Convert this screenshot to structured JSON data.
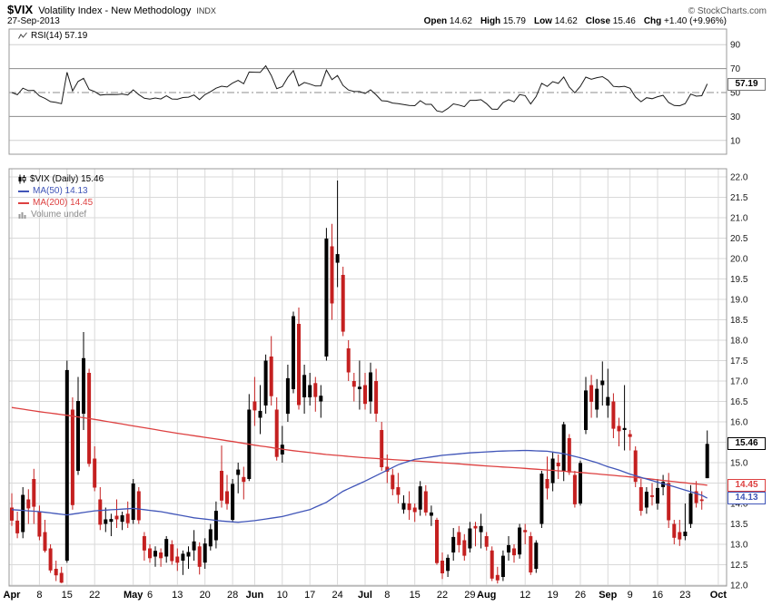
{
  "header": {
    "symbol": "$VIX",
    "title": "Volatility Index - New Methodology",
    "exchange": "INDX",
    "copyright": "© StockCharts.com",
    "date": "27-Sep-2013",
    "quote_items": [
      {
        "label": "Open",
        "value": "14.62"
      },
      {
        "label": "High",
        "value": "15.79"
      },
      {
        "label": "Low",
        "value": "14.62"
      },
      {
        "label": "Close",
        "value": "15.46"
      },
      {
        "label": "Chg",
        "value": "+1.40 (+9.96%)"
      }
    ]
  },
  "rsi_panel": {
    "label": "RSI(14) 57.19",
    "last_label": "57.19",
    "ticks": [
      90,
      70,
      50,
      30,
      10
    ]
  },
  "main_panel": {
    "legend": {
      "series": "$VIX (Daily) 15.46",
      "ma50": "MA(50) 14.13",
      "ma200": "MA(200) 14.45",
      "volume": "Volume undef"
    },
    "last_close_label": "15.46",
    "ma50_label": "14.13",
    "ma200_label": "14.45"
  },
  "colors": {
    "candle_up": "#000000",
    "candle_down": "#c42020",
    "ma50": "#4055b8",
    "ma200": "#dd4040",
    "rsi_line": "#1a1a1a",
    "grid": "#d9d9d9",
    "panel_border": "#999999",
    "axis_text": "#1a1a1a",
    "volume_legend": "#8a8a8a"
  },
  "chart_data": {
    "type": "candlestick",
    "symbol": "$VIX",
    "timeframe": "Daily",
    "ylim": [
      12.0,
      22.0
    ],
    "y_ticks": [
      22.0,
      21.5,
      21.0,
      20.5,
      20.0,
      19.5,
      19.0,
      18.5,
      18.0,
      17.5,
      17.0,
      16.5,
      16.0,
      15.5,
      15.0,
      14.5,
      14.0,
      13.5,
      13.0,
      12.5,
      12.0
    ],
    "slots": 130,
    "last_close": 15.46,
    "x_labels": [
      [
        "Apr",
        0,
        true
      ],
      [
        "8",
        5,
        false
      ],
      [
        "15",
        10,
        false
      ],
      [
        "22",
        15,
        false
      ],
      [
        "May",
        22,
        true
      ],
      [
        "6",
        25,
        false
      ],
      [
        "13",
        30,
        false
      ],
      [
        "20",
        35,
        false
      ],
      [
        "28",
        40,
        false
      ],
      [
        "Jun",
        44,
        true
      ],
      [
        "10",
        49,
        false
      ],
      [
        "17",
        54,
        false
      ],
      [
        "24",
        59,
        false
      ],
      [
        "Jul",
        64,
        true
      ],
      [
        "8",
        68,
        false
      ],
      [
        "15",
        73,
        false
      ],
      [
        "22",
        78,
        false
      ],
      [
        "29",
        83,
        false
      ],
      [
        "Aug",
        86,
        true
      ],
      [
        "12",
        93,
        false
      ],
      [
        "19",
        98,
        false
      ],
      [
        "26",
        103,
        false
      ],
      [
        "Sep",
        108,
        true
      ],
      [
        "9",
        112,
        false
      ],
      [
        "16",
        117,
        false
      ],
      [
        "23",
        122,
        false
      ],
      [
        "Oct",
        128,
        true
      ]
    ],
    "candles": [
      [
        "Apr-01",
        13.9,
        14.25,
        13.45,
        13.58
      ],
      [
        "Apr-02",
        13.58,
        13.8,
        13.15,
        13.27
      ],
      [
        "Apr-03",
        13.3,
        14.4,
        13.15,
        14.21
      ],
      [
        "Apr-04",
        14.1,
        14.35,
        13.5,
        13.88
      ],
      [
        "Apr-05",
        14.6,
        14.85,
        13.5,
        13.92
      ],
      [
        "Apr-08",
        13.8,
        13.95,
        13.1,
        13.19
      ],
      [
        "Apr-09",
        13.3,
        13.6,
        12.8,
        12.84
      ],
      [
        "Apr-10",
        12.9,
        13.0,
        12.3,
        12.36
      ],
      [
        "Apr-11",
        12.4,
        12.6,
        12.1,
        12.24
      ],
      [
        "Apr-12",
        12.3,
        12.45,
        12.05,
        12.06
      ],
      [
        "Apr-15",
        12.6,
        17.5,
        12.55,
        17.27
      ],
      [
        "Apr-16",
        16.3,
        16.6,
        13.85,
        13.96
      ],
      [
        "Apr-17",
        14.8,
        17.1,
        14.7,
        16.51
      ],
      [
        "Apr-18",
        16.2,
        18.2,
        15.8,
        17.56
      ],
      [
        "Apr-19",
        17.2,
        17.3,
        14.9,
        14.97
      ],
      [
        "Apr-22",
        15.1,
        15.4,
        14.3,
        14.39
      ],
      [
        "Apr-23",
        14.1,
        14.4,
        13.35,
        13.48
      ],
      [
        "Apr-24",
        13.5,
        13.9,
        13.3,
        13.61
      ],
      [
        "Apr-25",
        13.55,
        13.75,
        13.2,
        13.62
      ],
      [
        "Apr-26",
        13.7,
        14.1,
        13.4,
        13.61
      ],
      [
        "Apr-29",
        13.55,
        13.8,
        13.35,
        13.71
      ],
      [
        "Apr-30",
        13.75,
        14.05,
        13.4,
        13.52
      ],
      [
        "May-01",
        13.6,
        14.6,
        13.5,
        14.49
      ],
      [
        "May-02",
        14.3,
        14.4,
        13.5,
        13.59
      ],
      [
        "May-03",
        13.2,
        13.3,
        12.6,
        12.85
      ],
      [
        "May-06",
        12.9,
        13.0,
        12.55,
        12.66
      ],
      [
        "May-07",
        12.7,
        12.95,
        12.45,
        12.84
      ],
      [
        "May-08",
        12.8,
        12.9,
        12.45,
        12.66
      ],
      [
        "May-09",
        12.7,
        13.2,
        12.55,
        13.13
      ],
      [
        "May-10",
        13.0,
        13.1,
        12.5,
        12.59
      ],
      [
        "May-13",
        12.7,
        12.9,
        12.35,
        12.55
      ],
      [
        "May-14",
        12.6,
        12.85,
        12.25,
        12.77
      ],
      [
        "May-15",
        12.7,
        12.95,
        12.4,
        12.81
      ],
      [
        "May-16",
        12.85,
        13.35,
        12.6,
        13.07
      ],
      [
        "May-17",
        12.95,
        13.05,
        12.26,
        12.45
      ],
      [
        "May-20",
        12.55,
        13.15,
        12.4,
        13.02
      ],
      [
        "May-21",
        12.95,
        13.5,
        12.85,
        13.37
      ],
      [
        "May-22",
        13.1,
        14.05,
        12.9,
        13.82
      ],
      [
        "May-23",
        14.8,
        15.42,
        13.9,
        14.07
      ],
      [
        "May-24",
        14.3,
        14.7,
        13.85,
        13.99
      ],
      [
        "May-28",
        13.6,
        14.6,
        13.55,
        14.48
      ],
      [
        "May-29",
        14.7,
        15.0,
        14.25,
        14.83
      ],
      [
        "May-30",
        14.65,
        14.9,
        14.1,
        14.53
      ],
      [
        "May-31",
        14.6,
        16.68,
        14.55,
        16.3
      ],
      [
        "Jun-03",
        16.5,
        17.1,
        15.9,
        16.28
      ],
      [
        "Jun-04",
        16.1,
        16.9,
        15.7,
        16.27
      ],
      [
        "Jun-05",
        16.4,
        17.65,
        16.2,
        17.5
      ],
      [
        "Jun-06",
        17.6,
        18.1,
        16.4,
        16.63
      ],
      [
        "Jun-07",
        16.3,
        16.6,
        15.05,
        15.14
      ],
      [
        "Jun-10",
        15.2,
        15.9,
        15.0,
        15.44
      ],
      [
        "Jun-11",
        16.2,
        17.4,
        16.0,
        17.07
      ],
      [
        "Jun-12",
        16.8,
        18.7,
        16.7,
        18.59
      ],
      [
        "Jun-13",
        18.4,
        18.8,
        16.3,
        16.41
      ],
      [
        "Jun-14",
        16.6,
        17.4,
        16.2,
        17.15
      ],
      [
        "Jun-17",
        16.6,
        17.2,
        16.4,
        16.9
      ],
      [
        "Jun-18",
        16.95,
        17.1,
        16.25,
        16.61
      ],
      [
        "Jun-19",
        16.5,
        16.9,
        16.1,
        16.64
      ],
      [
        "Jun-20",
        17.6,
        20.75,
        17.5,
        20.49
      ],
      [
        "Jun-21",
        20.3,
        20.85,
        18.5,
        18.9
      ],
      [
        "Jun-24",
        19.9,
        21.91,
        19.3,
        20.11
      ],
      [
        "Jun-25",
        19.6,
        19.8,
        18.1,
        18.21
      ],
      [
        "Jun-26",
        17.8,
        18.0,
        17.0,
        17.21
      ],
      [
        "Jun-27",
        17.0,
        17.2,
        16.5,
        16.86
      ],
      [
        "Jun-28",
        16.8,
        17.5,
        16.3,
        16.86
      ],
      [
        "Jul-01",
        16.9,
        17.2,
        16.3,
        16.44
      ],
      [
        "Jul-02",
        16.5,
        17.45,
        16.2,
        17.21
      ],
      [
        "Jul-03",
        17.0,
        17.3,
        16.0,
        16.2
      ],
      [
        "Jul-05",
        15.8,
        16.0,
        14.8,
        14.89
      ],
      [
        "Jul-08",
        14.9,
        15.2,
        14.5,
        14.78
      ],
      [
        "Jul-09",
        14.7,
        14.85,
        14.2,
        14.35
      ],
      [
        "Jul-10",
        14.4,
        14.75,
        14.0,
        14.21
      ],
      [
        "Jul-11",
        13.85,
        14.2,
        13.75,
        14.01
      ],
      [
        "Jul-12",
        14.0,
        14.3,
        13.6,
        13.84
      ],
      [
        "Jul-15",
        13.9,
        14.0,
        13.55,
        13.79
      ],
      [
        "Jul-16",
        13.85,
        14.55,
        13.7,
        14.42
      ],
      [
        "Jul-17",
        14.3,
        14.45,
        13.7,
        13.78
      ],
      [
        "Jul-18",
        13.7,
        13.95,
        13.45,
        13.78
      ],
      [
        "Jul-19",
        13.6,
        13.65,
        12.5,
        12.54
      ],
      [
        "Jul-22",
        12.6,
        12.8,
        12.15,
        12.29
      ],
      [
        "Jul-23",
        12.35,
        12.75,
        12.2,
        12.67
      ],
      [
        "Jul-24",
        12.8,
        13.4,
        12.6,
        13.18
      ],
      [
        "Jul-25",
        13.3,
        13.45,
        12.8,
        12.98
      ],
      [
        "Jul-26",
        13.1,
        13.25,
        12.6,
        12.72
      ],
      [
        "Jul-29",
        12.9,
        13.55,
        12.8,
        13.39
      ],
      [
        "Jul-30",
        13.45,
        13.55,
        12.95,
        13.39
      ],
      [
        "Jul-31",
        13.3,
        13.75,
        12.9,
        13.45
      ],
      [
        "Aug-01",
        13.2,
        13.3,
        12.85,
        12.94
      ],
      [
        "Aug-02",
        12.85,
        12.95,
        12.1,
        12.16
      ],
      [
        "Aug-05",
        12.25,
        12.45,
        12.04,
        12.12
      ],
      [
        "Aug-06",
        12.2,
        12.85,
        12.1,
        12.72
      ],
      [
        "Aug-07",
        12.8,
        13.2,
        12.6,
        12.98
      ],
      [
        "Aug-08",
        12.9,
        13.0,
        12.55,
        12.73
      ],
      [
        "Aug-09",
        12.75,
        13.5,
        12.65,
        13.41
      ],
      [
        "Aug-12",
        13.35,
        13.5,
        13.0,
        13.3
      ],
      [
        "Aug-13",
        13.2,
        13.3,
        12.25,
        12.31
      ],
      [
        "Aug-14",
        12.4,
        13.1,
        12.3,
        13.04
      ],
      [
        "Aug-15",
        13.5,
        14.8,
        13.4,
        14.73
      ],
      [
        "Aug-16",
        14.6,
        15.15,
        14.1,
        14.37
      ],
      [
        "Aug-19",
        14.5,
        15.25,
        14.3,
        15.1
      ],
      [
        "Aug-20",
        15.0,
        15.2,
        14.6,
        14.91
      ],
      [
        "Aug-21",
        14.8,
        16.0,
        14.55,
        15.94
      ],
      [
        "Aug-22",
        15.6,
        15.7,
        14.7,
        14.76
      ],
      [
        "Aug-23",
        14.7,
        14.8,
        13.9,
        13.98
      ],
      [
        "Aug-26",
        14.0,
        15.05,
        13.95,
        14.99
      ],
      [
        "Aug-27",
        15.8,
        17.1,
        15.7,
        16.77
      ],
      [
        "Aug-28",
        16.9,
        17.15,
        16.1,
        16.49
      ],
      [
        "Aug-29",
        16.3,
        17.05,
        16.1,
        16.81
      ],
      [
        "Aug-30",
        16.9,
        17.48,
        16.4,
        17.01
      ],
      [
        "Sep-03",
        16.4,
        17.3,
        16.1,
        16.61
      ],
      [
        "Sep-04",
        16.5,
        16.7,
        15.6,
        15.83
      ],
      [
        "Sep-05",
        15.9,
        16.1,
        15.4,
        15.77
      ],
      [
        "Sep-06",
        15.8,
        16.9,
        15.3,
        15.85
      ],
      [
        "Sep-09",
        15.7,
        15.8,
        15.3,
        15.63
      ],
      [
        "Sep-10",
        15.3,
        15.4,
        14.4,
        14.53
      ],
      [
        "Sep-11",
        14.4,
        14.6,
        13.7,
        13.82
      ],
      [
        "Sep-12",
        13.9,
        14.4,
        13.75,
        14.29
      ],
      [
        "Sep-13",
        14.2,
        14.5,
        13.95,
        14.16
      ],
      [
        "Sep-16",
        14.0,
        14.6,
        13.85,
        14.38
      ],
      [
        "Sep-17",
        14.4,
        14.7,
        14.2,
        14.53
      ],
      [
        "Sep-18",
        14.5,
        14.75,
        13.4,
        13.59
      ],
      [
        "Sep-19",
        13.5,
        13.6,
        13.0,
        13.16
      ],
      [
        "Sep-20",
        13.3,
        13.6,
        12.96,
        13.12
      ],
      [
        "Sep-23",
        13.2,
        14.0,
        13.1,
        13.31
      ],
      [
        "Sep-24",
        13.5,
        14.45,
        13.4,
        14.25
      ],
      [
        "Sep-25",
        14.3,
        14.55,
        13.9,
        14.01
      ],
      [
        "Sep-26",
        14.1,
        14.3,
        13.85,
        14.06
      ],
      [
        "Sep-27",
        14.62,
        15.79,
        14.62,
        15.46
      ]
    ],
    "ma50": {
      "label": "MA(50)",
      "last": 14.13,
      "points": [
        [
          0,
          13.85
        ],
        [
          5,
          13.8
        ],
        [
          10,
          13.72
        ],
        [
          15,
          13.82
        ],
        [
          22,
          13.88
        ],
        [
          27,
          13.8
        ],
        [
          33,
          13.65
        ],
        [
          38,
          13.57
        ],
        [
          41,
          13.54
        ],
        [
          44,
          13.58
        ],
        [
          49,
          13.68
        ],
        [
          54,
          13.85
        ],
        [
          57,
          14.03
        ],
        [
          60,
          14.3
        ],
        [
          64,
          14.55
        ],
        [
          67,
          14.75
        ],
        [
          70,
          14.95
        ],
        [
          73,
          15.08
        ],
        [
          78,
          15.18
        ],
        [
          83,
          15.24
        ],
        [
          88,
          15.28
        ],
        [
          93,
          15.3
        ],
        [
          97,
          15.28
        ],
        [
          100,
          15.22
        ],
        [
          103,
          15.12
        ],
        [
          106,
          15.0
        ],
        [
          108,
          14.9
        ],
        [
          110,
          14.82
        ],
        [
          112,
          14.72
        ],
        [
          115,
          14.6
        ],
        [
          117,
          14.52
        ],
        [
          119,
          14.45
        ],
        [
          121,
          14.37
        ],
        [
          123,
          14.29
        ],
        [
          125,
          14.2
        ],
        [
          126,
          14.13
        ]
      ]
    },
    "ma200": {
      "label": "MA(200)",
      "last": 14.45,
      "points": [
        [
          0,
          16.35
        ],
        [
          5,
          16.25
        ],
        [
          10,
          16.16
        ],
        [
          15,
          16.06
        ],
        [
          22,
          15.9
        ],
        [
          30,
          15.72
        ],
        [
          38,
          15.56
        ],
        [
          44,
          15.43
        ],
        [
          50,
          15.31
        ],
        [
          57,
          15.2
        ],
        [
          64,
          15.12
        ],
        [
          72,
          15.05
        ],
        [
          80,
          14.98
        ],
        [
          86,
          14.92
        ],
        [
          93,
          14.86
        ],
        [
          98,
          14.81
        ],
        [
          103,
          14.76
        ],
        [
          108,
          14.7
        ],
        [
          113,
          14.64
        ],
        [
          117,
          14.58
        ],
        [
          121,
          14.52
        ],
        [
          126,
          14.45
        ]
      ]
    },
    "rsi": {
      "label": "RSI(14)",
      "period": 14,
      "last": 57.19,
      "range": [
        0,
        100
      ],
      "ticks": [
        90,
        70,
        50,
        30,
        10
      ],
      "overbought": 70,
      "oversold": 30,
      "midline": 50,
      "seed_avg_move": 0.32
    }
  }
}
